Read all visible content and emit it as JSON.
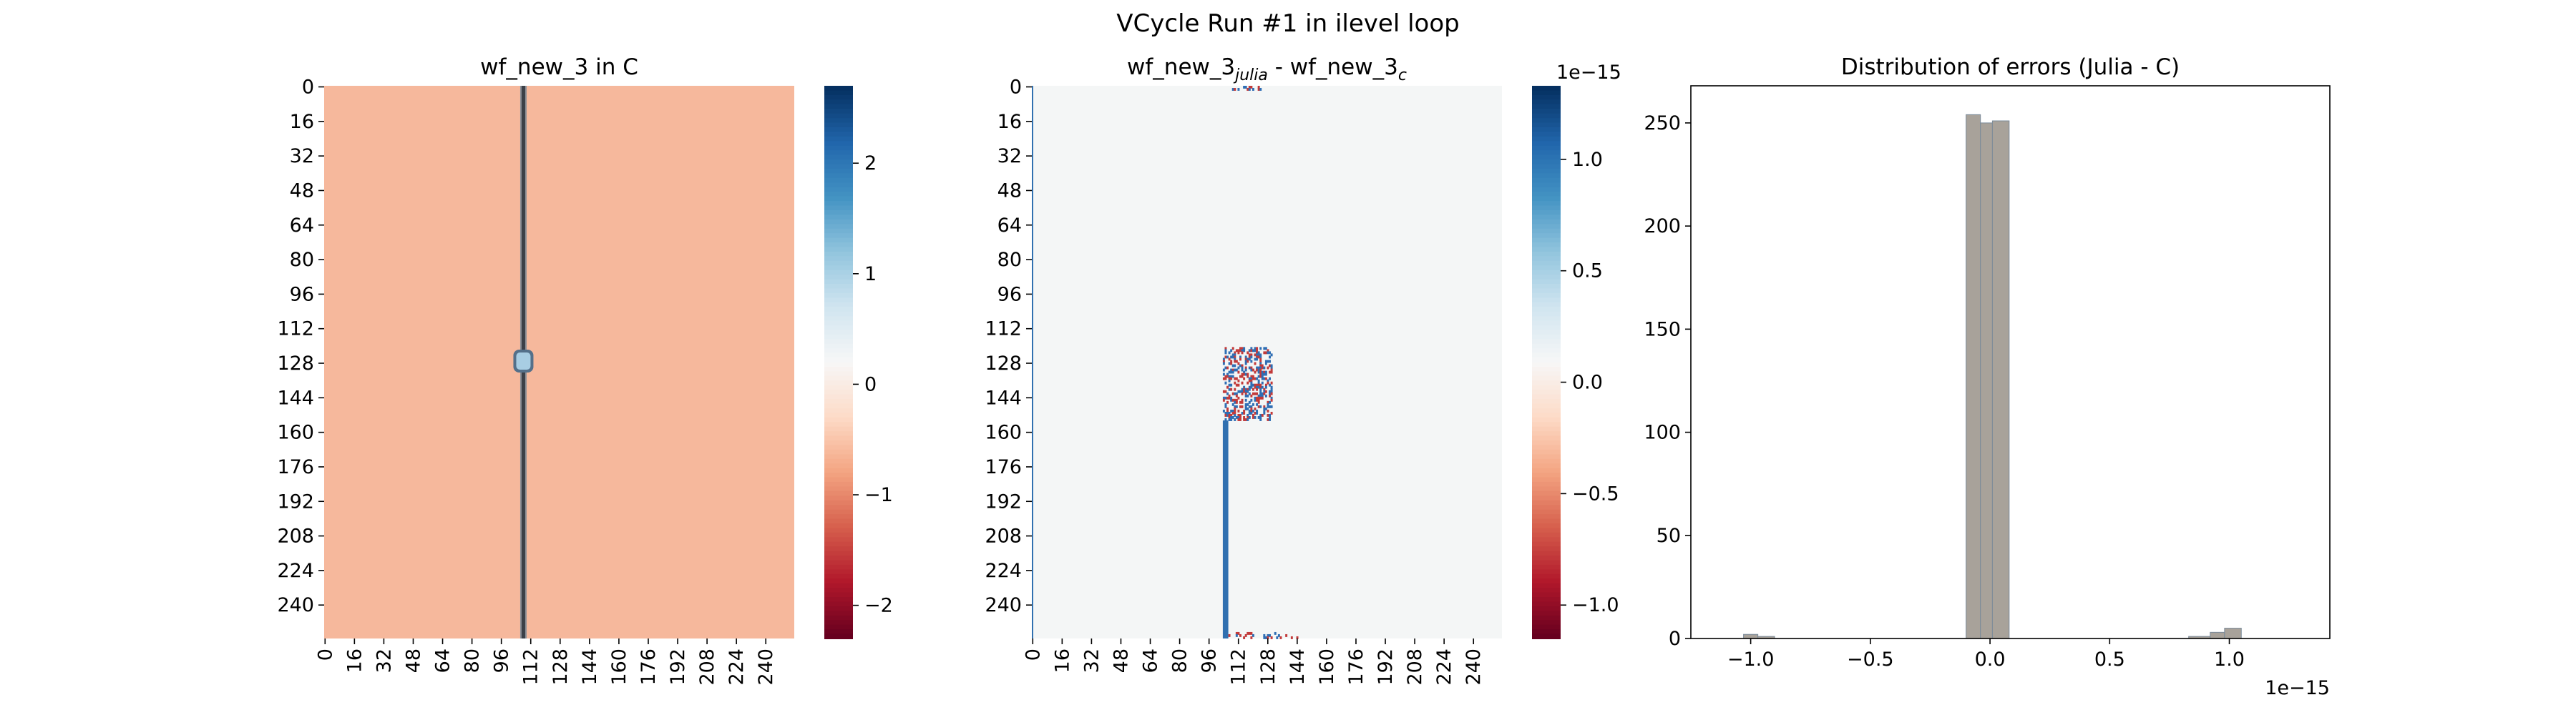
{
  "figure_title": "VCycle Run #1 in ilevel loop",
  "colors": {
    "background_value": "#f6b89c",
    "vertical_line": "#3b4048",
    "blob": "#a8cde3",
    "diff_bg": "#f4f6f6",
    "diff_column": "#3070b0",
    "noise_blue": "#2f6eb4",
    "noise_red": "#c23a3a",
    "hist_fill": "#a8a29a",
    "hist_edge": "#7a8a99"
  },
  "chart_data": [
    {
      "type": "heatmap",
      "title": "wf_new_3 in C",
      "xlabel": "",
      "ylabel": "",
      "grid_size": 256,
      "x_ticks": [
        "0",
        "16",
        "32",
        "48",
        "64",
        "80",
        "96",
        "112",
        "128",
        "144",
        "160",
        "176",
        "192",
        "208",
        "224",
        "240"
      ],
      "y_ticks": [
        "0",
        "16",
        "32",
        "48",
        "64",
        "80",
        "96",
        "112",
        "128",
        "144",
        "160",
        "176",
        "192",
        "208",
        "224",
        "240"
      ],
      "x_rotated": true,
      "colormap": "RdBu",
      "vmin": -2.3,
      "vmax": 2.7,
      "colorbar_ticks": [
        "2",
        "1",
        "0",
        "−1",
        "−2"
      ],
      "colorbar_tick_values": [
        2,
        1,
        0,
        -1,
        -2
      ],
      "background_value": -1.0,
      "features": [
        {
          "kind": "vertical_line",
          "column": 108,
          "value": -2.0
        },
        {
          "kind": "blob",
          "row": 127,
          "column": 108,
          "value": 0.8
        }
      ]
    },
    {
      "type": "heatmap",
      "title": "wf_new_3_julia - wf_new_3_c",
      "title_parts": {
        "base1": "wf_new_3",
        "sub1": "julia",
        "mid": " - wf_new_3",
        "sub2": "c"
      },
      "grid_size": 256,
      "x_ticks": [
        "0",
        "16",
        "32",
        "48",
        "64",
        "80",
        "96",
        "112",
        "128",
        "144",
        "160",
        "176",
        "192",
        "208",
        "224",
        "240"
      ],
      "y_ticks": [
        "0",
        "16",
        "32",
        "48",
        "64",
        "80",
        "96",
        "112",
        "128",
        "144",
        "160",
        "176",
        "192",
        "208",
        "224",
        "240"
      ],
      "x_rotated": true,
      "colormap": "RdBu",
      "vmin": -1.15e-15,
      "vmax": 1.33e-15,
      "colorbar_offset": "1e−15",
      "colorbar_ticks": [
        "1.0",
        "0.5",
        "0.0",
        "−0.5",
        "−1.0"
      ],
      "colorbar_tick_values": [
        1.0,
        0.5,
        0.0,
        -0.5,
        -1.0
      ],
      "features": [
        {
          "kind": "column",
          "column": 104,
          "row_start": 155,
          "row_end": 256,
          "value": 1e-15
        },
        {
          "kind": "noise_block",
          "row_start": 121,
          "row_end": 155,
          "col_start": 104,
          "col_end": 131
        },
        {
          "kind": "noise_band",
          "row_start": 0,
          "row_end": 2,
          "col_start": 107,
          "col_end": 125
        },
        {
          "kind": "noise_band",
          "row_start": 253,
          "row_end": 256,
          "col_start": 107,
          "col_end": 145
        }
      ]
    },
    {
      "type": "bar",
      "title": "Distribution of errors (Julia - C)",
      "xlabel": "",
      "ylabel": "",
      "xlim": [
        -1.25e-15,
        1.42e-15
      ],
      "ylim": [
        0,
        268
      ],
      "x_ticks": [
        "−1.0",
        "−0.5",
        "0.0",
        "0.5",
        "1.0"
      ],
      "x_tick_values": [
        -1e-15,
        -5e-16,
        0.0,
        5e-16,
        1e-15
      ],
      "x_offset": "1e−15",
      "y_ticks": [
        "0",
        "50",
        "100",
        "150",
        "200",
        "250"
      ],
      "y_tick_values": [
        0,
        50,
        100,
        150,
        200,
        250
      ],
      "bins": [
        {
          "x0": -1.03e-15,
          "x1": -9.7e-16,
          "count": 2
        },
        {
          "x0": -9.7e-16,
          "x1": -9e-16,
          "count": 1
        },
        {
          "x0": -1e-16,
          "x1": -4e-17,
          "count": 254
        },
        {
          "x0": -4e-17,
          "x1": 1e-17,
          "count": 250
        },
        {
          "x0": 1e-17,
          "x1": 8e-17,
          "count": 251
        },
        {
          "x0": 8.3e-16,
          "x1": 9.2e-16,
          "count": 1
        },
        {
          "x0": 9.2e-16,
          "x1": 9.8e-16,
          "count": 3
        },
        {
          "x0": 9.8e-16,
          "x1": 1.05e-15,
          "count": 5
        }
      ]
    }
  ]
}
